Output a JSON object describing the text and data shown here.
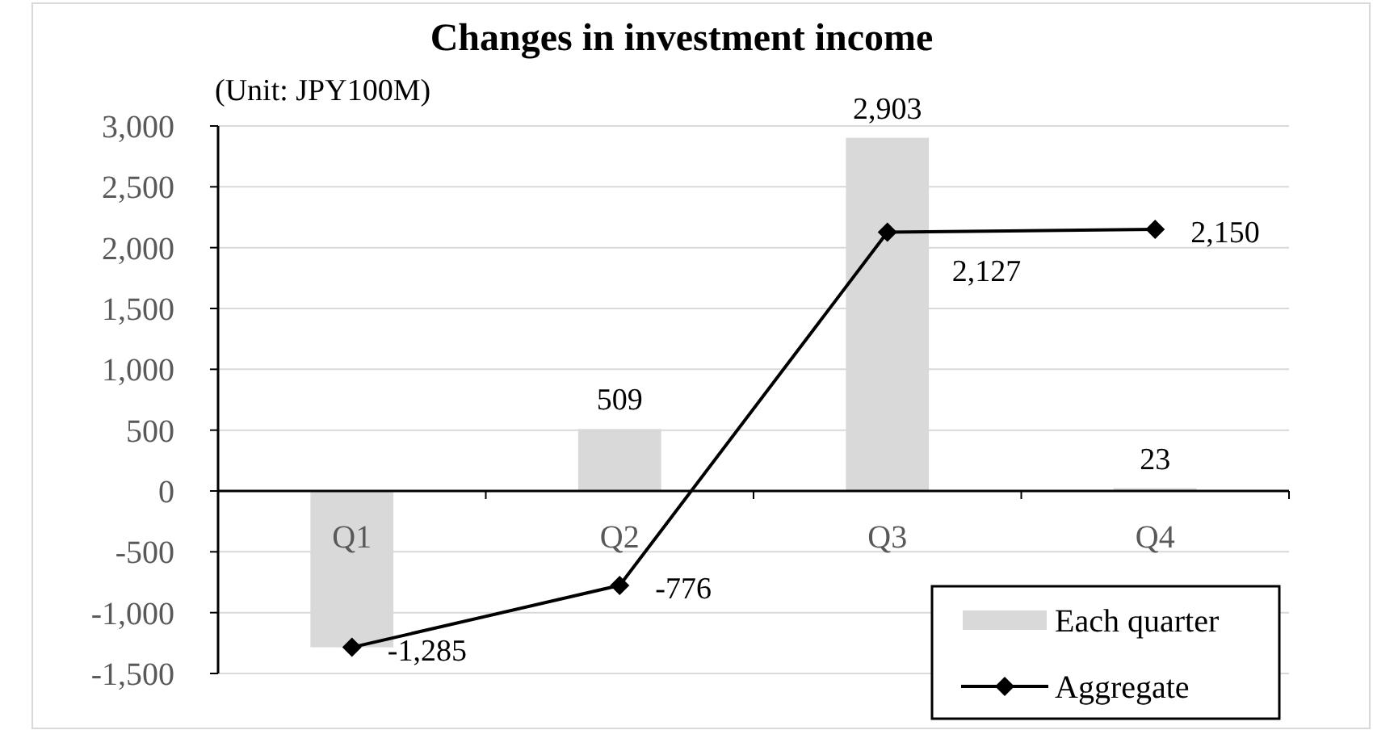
{
  "chart_data": {
    "type": "bar",
    "title": "Changes in investment income",
    "annotations": [
      "(Unit: JPY100M)"
    ],
    "categories": [
      "Q1",
      "Q2",
      "Q3",
      "Q4"
    ],
    "series": [
      {
        "name": "Each quarter",
        "color": "#d9d9d9",
        "values": [
          -1285,
          509,
          2903,
          23
        ],
        "value_labels": [
          null,
          "509",
          "2,903",
          "23"
        ]
      },
      {
        "name": "Aggregate",
        "type": "line",
        "color": "#000000",
        "values": [
          -1285,
          -776,
          2127,
          2150
        ],
        "value_labels": [
          "-1,285",
          "-776",
          "2,127",
          "2,150"
        ],
        "marker": "diamond"
      }
    ],
    "ylim": [
      -1500,
      3000
    ],
    "yticks": [
      {
        "value": -1500,
        "label": "-1,500"
      },
      {
        "value": -1000,
        "label": "-1,000"
      },
      -500,
      0,
      500,
      {
        "value": 1000,
        "label": "1,000"
      },
      {
        "value": 1500,
        "label": "1,500"
      },
      {
        "value": 2000,
        "label": "2,000"
      },
      {
        "value": 2500,
        "label": "2,500"
      },
      {
        "value": 3000,
        "label": "3,000"
      }
    ],
    "grid": "y",
    "legend": "bottom right"
  }
}
